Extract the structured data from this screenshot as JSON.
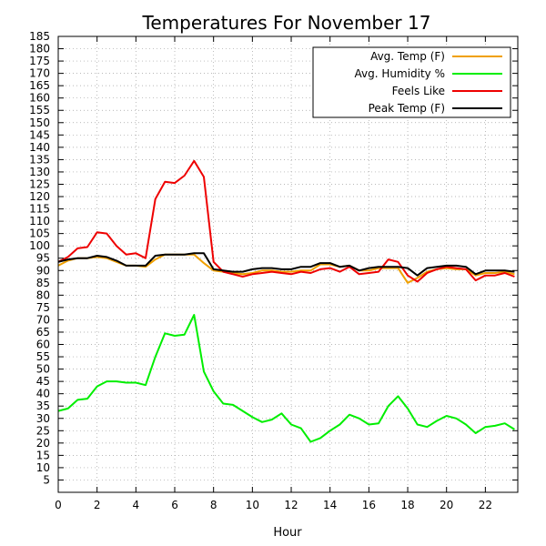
{
  "chart_data": {
    "type": "line",
    "title": "Temperatures For November 17",
    "xlabel": "Hour",
    "ylabel": "",
    "xlim": [
      0,
      23.67
    ],
    "ylim": [
      0,
      185
    ],
    "x_ticks": [
      0,
      2,
      4,
      6,
      8,
      10,
      12,
      14,
      16,
      18,
      20,
      22
    ],
    "y_ticks": [
      5,
      10,
      15,
      20,
      25,
      30,
      35,
      40,
      45,
      50,
      55,
      60,
      65,
      70,
      75,
      80,
      85,
      90,
      95,
      100,
      105,
      110,
      115,
      120,
      125,
      130,
      135,
      140,
      145,
      150,
      155,
      160,
      165,
      170,
      175,
      180,
      185
    ],
    "grid": true,
    "legend_position": "top-right",
    "series": [
      {
        "name": "Avg. Temp (F)",
        "color": "#f0a000",
        "points": [
          [
            0,
            92
          ],
          [
            0.5,
            94
          ],
          [
            1,
            95
          ],
          [
            1.5,
            95
          ],
          [
            2,
            95.5
          ],
          [
            2.5,
            95
          ],
          [
            3,
            93.5
          ],
          [
            3.5,
            92
          ],
          [
            4,
            92
          ],
          [
            4.5,
            91.5
          ],
          [
            5,
            94.5
          ],
          [
            5.5,
            96.5
          ],
          [
            6,
            96.5
          ],
          [
            6.5,
            96.5
          ],
          [
            7,
            96.5
          ],
          [
            7.5,
            93
          ],
          [
            8,
            90
          ],
          [
            8.5,
            89.5
          ],
          [
            9,
            89
          ],
          [
            9.5,
            88.5
          ],
          [
            10,
            89
          ],
          [
            10.5,
            90
          ],
          [
            11,
            90
          ],
          [
            11.5,
            89.5
          ],
          [
            12,
            89.5
          ],
          [
            12.5,
            90
          ],
          [
            13,
            90
          ],
          [
            13.5,
            92.5
          ],
          [
            14,
            92.5
          ],
          [
            14.5,
            91.5
          ],
          [
            15,
            92
          ],
          [
            15.5,
            90
          ],
          [
            16,
            90
          ],
          [
            16.5,
            91
          ],
          [
            17,
            91
          ],
          [
            17.5,
            91
          ],
          [
            18,
            85
          ],
          [
            18.5,
            87
          ],
          [
            19,
            89.5
          ],
          [
            19.5,
            90.5
          ],
          [
            20,
            91
          ],
          [
            20.5,
            90.5
          ],
          [
            21,
            90.5
          ],
          [
            21.5,
            88
          ],
          [
            22,
            89
          ],
          [
            22.5,
            89
          ],
          [
            23,
            89.5
          ],
          [
            23.5,
            88.5
          ]
        ]
      },
      {
        "name": "Avg. Humidity %",
        "color": "#00ee00",
        "points": [
          [
            0,
            33
          ],
          [
            0.5,
            34
          ],
          [
            1,
            37.5
          ],
          [
            1.5,
            38
          ],
          [
            2,
            43
          ],
          [
            2.5,
            45
          ],
          [
            3,
            45
          ],
          [
            3.5,
            44.5
          ],
          [
            4,
            44.5
          ],
          [
            4.5,
            43.5
          ],
          [
            5,
            55
          ],
          [
            5.5,
            64.5
          ],
          [
            6,
            63.5
          ],
          [
            6.5,
            64
          ],
          [
            7,
            72
          ],
          [
            7.5,
            49
          ],
          [
            8,
            41
          ],
          [
            8.5,
            36
          ],
          [
            9,
            35.5
          ],
          [
            9.5,
            33
          ],
          [
            10,
            30.5
          ],
          [
            10.5,
            28.5
          ],
          [
            11,
            29.5
          ],
          [
            11.5,
            32
          ],
          [
            12,
            27.5
          ],
          [
            12.5,
            26
          ],
          [
            13,
            20.5
          ],
          [
            13.5,
            22
          ],
          [
            14,
            25
          ],
          [
            14.5,
            27.5
          ],
          [
            15,
            31.5
          ],
          [
            15.5,
            30
          ],
          [
            16,
            27.5
          ],
          [
            16.5,
            28
          ],
          [
            17,
            35
          ],
          [
            17.5,
            39
          ],
          [
            18,
            34
          ],
          [
            18.5,
            27.5
          ],
          [
            19,
            26.5
          ],
          [
            19.5,
            29
          ],
          [
            20,
            31
          ],
          [
            20.5,
            30
          ],
          [
            21,
            27.5
          ],
          [
            21.5,
            24
          ],
          [
            22,
            26.5
          ],
          [
            22.5,
            27
          ],
          [
            23,
            28
          ],
          [
            23.5,
            25.5
          ]
        ]
      },
      {
        "name": "Feels Like",
        "color": "#ee0000",
        "points": [
          [
            0,
            93.5
          ],
          [
            0.5,
            95.5
          ],
          [
            1,
            99
          ],
          [
            1.5,
            99.5
          ],
          [
            2,
            105.5
          ],
          [
            2.5,
            105
          ],
          [
            3,
            100
          ],
          [
            3.5,
            96.5
          ],
          [
            4,
            97
          ],
          [
            4.5,
            95
          ],
          [
            5,
            119
          ],
          [
            5.5,
            126
          ],
          [
            6,
            125.5
          ],
          [
            6.5,
            128.5
          ],
          [
            7,
            134.5
          ],
          [
            7.5,
            128
          ],
          [
            8,
            93.5
          ],
          [
            8.5,
            89.5
          ],
          [
            9,
            88.5
          ],
          [
            9.5,
            87.5
          ],
          [
            10,
            88.5
          ],
          [
            10.5,
            89
          ],
          [
            11,
            89.5
          ],
          [
            11.5,
            89
          ],
          [
            12,
            88.5
          ],
          [
            12.5,
            89.5
          ],
          [
            13,
            89
          ],
          [
            13.5,
            90.5
          ],
          [
            14,
            91
          ],
          [
            14.5,
            89.5
          ],
          [
            15,
            91.5
          ],
          [
            15.5,
            88.5
          ],
          [
            16,
            89
          ],
          [
            16.5,
            89.5
          ],
          [
            17,
            94.5
          ],
          [
            17.5,
            93.5
          ],
          [
            18,
            88
          ],
          [
            18.5,
            85.5
          ],
          [
            19,
            89
          ],
          [
            19.5,
            90.5
          ],
          [
            20,
            91.5
          ],
          [
            20.5,
            91
          ],
          [
            21,
            90.5
          ],
          [
            21.5,
            86
          ],
          [
            22,
            88
          ],
          [
            22.5,
            88
          ],
          [
            23,
            89
          ],
          [
            23.5,
            87.5
          ]
        ]
      },
      {
        "name": "Peak Temp (F)",
        "color": "#000000",
        "points": [
          [
            0,
            93.5
          ],
          [
            0.5,
            94.5
          ],
          [
            1,
            95
          ],
          [
            1.5,
            95
          ],
          [
            2,
            96
          ],
          [
            2.5,
            95.5
          ],
          [
            3,
            94
          ],
          [
            3.5,
            92
          ],
          [
            4,
            92
          ],
          [
            4.5,
            92
          ],
          [
            5,
            96
          ],
          [
            5.5,
            96.5
          ],
          [
            6,
            96.5
          ],
          [
            6.5,
            96.5
          ],
          [
            7,
            97
          ],
          [
            7.5,
            97
          ],
          [
            8,
            90.5
          ],
          [
            8.5,
            90
          ],
          [
            9,
            89.5
          ],
          [
            9.5,
            89.5
          ],
          [
            10,
            90.5
          ],
          [
            10.5,
            91
          ],
          [
            11,
            91
          ],
          [
            11.5,
            90.5
          ],
          [
            12,
            90.5
          ],
          [
            12.5,
            91.5
          ],
          [
            13,
            91.5
          ],
          [
            13.5,
            93
          ],
          [
            14,
            93
          ],
          [
            14.5,
            91.5
          ],
          [
            15,
            92
          ],
          [
            15.5,
            90
          ],
          [
            16,
            91
          ],
          [
            16.5,
            91.5
          ],
          [
            17,
            91.5
          ],
          [
            17.5,
            91.5
          ],
          [
            18,
            91
          ],
          [
            18.5,
            88
          ],
          [
            19,
            91
          ],
          [
            19.5,
            91.5
          ],
          [
            20,
            92
          ],
          [
            20.5,
            92
          ],
          [
            21,
            91.5
          ],
          [
            21.5,
            88.5
          ],
          [
            22,
            90
          ],
          [
            22.5,
            90
          ],
          [
            23,
            90
          ],
          [
            23.5,
            89.5
          ]
        ]
      }
    ]
  }
}
